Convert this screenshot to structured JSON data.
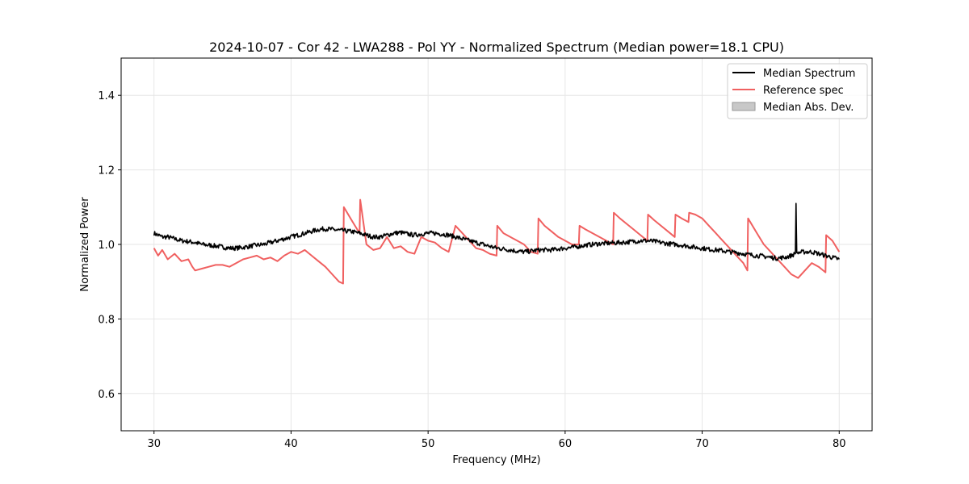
{
  "chart_data": {
    "type": "line",
    "title": "2024-10-07 - Cor 42 - LWA288 - Pol YY - Normalized Spectrum (Median power=18.1 CPU)",
    "xlabel": "Frequency (MHz)",
    "ylabel": "Normalized Power",
    "xlim": [
      27.6,
      82.4
    ],
    "ylim": [
      0.5,
      1.5
    ],
    "x_ticks": [
      30,
      40,
      50,
      60,
      70,
      80
    ],
    "y_ticks": [
      0.6,
      0.8,
      1.0,
      1.2,
      1.4
    ],
    "x_tick_labels": [
      "30",
      "40",
      "50",
      "60",
      "70",
      "80"
    ],
    "y_tick_labels": [
      "0.6",
      "0.8",
      "1.0",
      "1.2",
      "1.4"
    ],
    "grid": true,
    "legend_position": "top-right",
    "legend": [
      {
        "label": "Median Spectrum",
        "kind": "line",
        "color": "#000000"
      },
      {
        "label": "Reference spec",
        "kind": "line",
        "color": "#f06060"
      },
      {
        "label": "Median Abs. Dev.",
        "kind": "patch",
        "color": "#c8c8c8"
      }
    ],
    "series": [
      {
        "name": "Median Spectrum",
        "color": "#000000",
        "x": [
          30,
          30.3,
          30.6,
          31,
          31.5,
          32,
          32.5,
          33,
          33.5,
          34,
          34.5,
          35,
          35.5,
          36,
          36.5,
          37,
          37.5,
          38,
          38.5,
          39,
          39.5,
          40,
          40.5,
          41,
          41.5,
          42,
          42.5,
          43,
          43.5,
          44,
          44.5,
          45,
          45.5,
          46,
          46.5,
          47,
          47.5,
          48,
          48.5,
          49,
          49.5,
          50,
          50.5,
          51,
          51.5,
          52,
          52.5,
          53,
          53.5,
          54,
          54.5,
          55,
          55.5,
          56,
          56.5,
          57,
          57.5,
          58,
          58.5,
          59,
          59.5,
          60,
          60.5,
          61,
          61.5,
          62,
          62.5,
          63,
          63.5,
          64,
          64.5,
          65,
          65.5,
          66,
          66.5,
          67,
          67.5,
          68,
          68.5,
          69,
          69.5,
          70,
          70.5,
          71,
          71.5,
          72,
          72.5,
          73,
          73.5,
          74,
          74.5,
          75,
          75.5,
          76,
          76.5,
          76.8,
          76.85,
          76.9,
          77,
          77.5,
          78,
          78.5,
          79,
          79.5,
          80
        ],
        "values": [
          1.03,
          1.025,
          1.02,
          1.02,
          1.015,
          1.01,
          1.008,
          1.005,
          1.0,
          0.998,
          0.996,
          0.993,
          0.99,
          0.99,
          0.992,
          0.995,
          0.998,
          1.0,
          1.005,
          1.01,
          1.015,
          1.02,
          1.025,
          1.03,
          1.035,
          1.04,
          1.042,
          1.04,
          1.038,
          1.036,
          1.034,
          1.03,
          1.025,
          1.02,
          1.02,
          1.025,
          1.03,
          1.032,
          1.028,
          1.025,
          1.028,
          1.03,
          1.03,
          1.028,
          1.025,
          1.02,
          1.015,
          1.01,
          1.005,
          1.0,
          0.995,
          0.99,
          0.988,
          0.985,
          0.982,
          0.98,
          0.982,
          0.985,
          0.985,
          0.985,
          0.988,
          0.99,
          0.992,
          0.995,
          0.998,
          1.0,
          1.002,
          1.003,
          1.004,
          1.005,
          1.006,
          1.008,
          1.01,
          1.01,
          1.008,
          1.005,
          1.002,
          1.0,
          0.998,
          0.995,
          0.992,
          0.99,
          0.987,
          0.985,
          0.983,
          0.98,
          0.978,
          0.975,
          0.972,
          0.97,
          0.968,
          0.965,
          0.963,
          0.965,
          0.97,
          0.975,
          1.11,
          0.978,
          0.978,
          0.98,
          0.98,
          0.975,
          0.97,
          0.965,
          0.96
        ]
      },
      {
        "name": "Reference spec",
        "color": "#f06060",
        "x": [
          30,
          30.3,
          30.6,
          31,
          31.5,
          32,
          32.5,
          32.8,
          33,
          33.5,
          34,
          34.5,
          35,
          35.5,
          36,
          36.5,
          37,
          37.5,
          38,
          38.5,
          39,
          39.5,
          40,
          40.5,
          41,
          41.5,
          42,
          42.5,
          43,
          43.5,
          43.8,
          43.85,
          44.5,
          45,
          45.05,
          45.5,
          46,
          46.5,
          47,
          47.5,
          48,
          48.5,
          49,
          49.5,
          50,
          50.5,
          51,
          51.5,
          52,
          52.5,
          53,
          53.5,
          54,
          54.5,
          55,
          55.05,
          55.5,
          56,
          56.5,
          57,
          57.5,
          58,
          58.05,
          58.5,
          59,
          59.5,
          60,
          60.5,
          61,
          61.05,
          61.5,
          62,
          62.5,
          63,
          63.5,
          63.55,
          64,
          64.5,
          65,
          65.5,
          66,
          66.05,
          66.5,
          67,
          67.5,
          68,
          68.05,
          68.5,
          69,
          69.05,
          69.5,
          70,
          70.5,
          71,
          71.5,
          72,
          72.5,
          73,
          73.3,
          73.35,
          74,
          74.5,
          75,
          75.5,
          76,
          76.5,
          77,
          77.5,
          78,
          78.5,
          79,
          79.05,
          79.5,
          80
        ],
        "values": [
          0.99,
          0.97,
          0.985,
          0.96,
          0.975,
          0.955,
          0.96,
          0.94,
          0.93,
          0.935,
          0.94,
          0.945,
          0.945,
          0.94,
          0.95,
          0.96,
          0.965,
          0.97,
          0.96,
          0.965,
          0.955,
          0.97,
          0.98,
          0.975,
          0.985,
          0.97,
          0.955,
          0.94,
          0.92,
          0.9,
          0.895,
          1.1,
          1.06,
          1.03,
          1.12,
          1.0,
          0.985,
          0.99,
          1.02,
          0.99,
          0.995,
          0.98,
          0.975,
          1.02,
          1.01,
          1.005,
          0.99,
          0.98,
          1.05,
          1.03,
          1.01,
          0.99,
          0.985,
          0.975,
          0.97,
          1.05,
          1.03,
          1.02,
          1.01,
          1.0,
          0.98,
          0.975,
          1.07,
          1.05,
          1.035,
          1.02,
          1.01,
          1.0,
          1.0,
          1.05,
          1.04,
          1.03,
          1.02,
          1.01,
          1.0,
          1.085,
          1.07,
          1.055,
          1.04,
          1.025,
          1.01,
          1.08,
          1.065,
          1.05,
          1.035,
          1.02,
          1.08,
          1.07,
          1.06,
          1.085,
          1.08,
          1.07,
          1.05,
          1.03,
          1.01,
          0.99,
          0.97,
          0.95,
          0.93,
          1.07,
          1.03,
          1.0,
          0.98,
          0.96,
          0.94,
          0.92,
          0.91,
          0.93,
          0.95,
          0.94,
          0.925,
          1.025,
          1.01,
          0.98
        ]
      }
    ]
  }
}
